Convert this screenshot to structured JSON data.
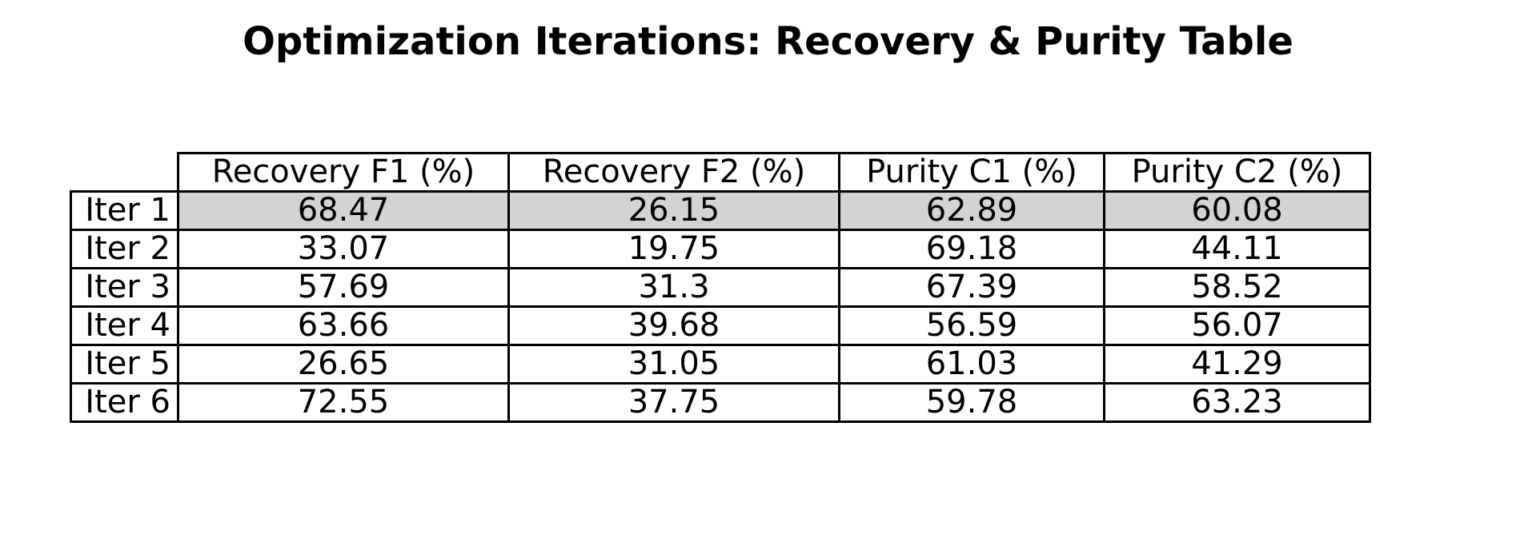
{
  "chart_data": {
    "type": "table",
    "title": "Optimization Iterations: Recovery & Purity Table",
    "columns": [
      "Recovery F1 (%)",
      "Recovery F2 (%)",
      "Purity C1 (%)",
      "Purity C2 (%)"
    ],
    "rows": [
      {
        "label": "Iter 1",
        "values": [
          "68.47",
          "26.15",
          "62.89",
          "60.08"
        ],
        "highlighted": true
      },
      {
        "label": "Iter 2",
        "values": [
          "33.07",
          "19.75",
          "69.18",
          "44.11"
        ],
        "highlighted": false
      },
      {
        "label": "Iter 3",
        "values": [
          "57.69",
          "31.3",
          "67.39",
          "58.52"
        ],
        "highlighted": false
      },
      {
        "label": "Iter 4",
        "values": [
          "63.66",
          "39.68",
          "56.59",
          "56.07"
        ],
        "highlighted": false
      },
      {
        "label": "Iter 5",
        "values": [
          "26.65",
          "31.05",
          "61.03",
          "41.29"
        ],
        "highlighted": false
      },
      {
        "label": "Iter 6",
        "values": [
          "72.55",
          "37.75",
          "59.78",
          "63.23"
        ],
        "highlighted": false
      }
    ],
    "highlight_color": "#d3d3d3"
  }
}
